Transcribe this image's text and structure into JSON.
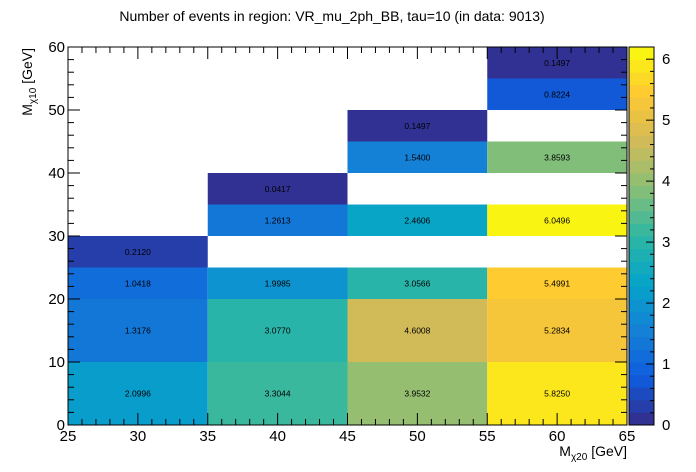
{
  "chart_data": {
    "type": "heatmap",
    "title": "Number of events in region: VR_mu_2ph_BB, tau=10 (in data: 9013)",
    "xlabel": {
      "main": "M",
      "sub": "χ20",
      "unit": " [GeV]"
    },
    "ylabel": {
      "main": "M",
      "sub": "χ10",
      "unit": " [GeV]"
    },
    "xlim": [
      25,
      65
    ],
    "ylim": [
      0,
      60
    ],
    "zlim": [
      0,
      6.2
    ],
    "x_ticks": [
      25,
      30,
      35,
      40,
      45,
      50,
      55,
      60,
      65
    ],
    "y_ticks": [
      0,
      10,
      20,
      30,
      40,
      50,
      60
    ],
    "z_ticks": [
      0,
      1,
      2,
      3,
      4,
      5,
      6
    ],
    "x_edges": [
      25,
      35,
      45,
      55,
      65
    ],
    "y_edges": [
      0,
      10,
      20,
      25,
      30,
      35,
      40,
      45,
      50,
      55,
      60
    ],
    "cells": [
      {
        "x": [
          25,
          35
        ],
        "y": [
          0,
          10
        ],
        "value": 2.0996,
        "label": "2.0996"
      },
      {
        "x": [
          25,
          35
        ],
        "y": [
          10,
          20
        ],
        "value": 1.3176,
        "label": "1.3176"
      },
      {
        "x": [
          25,
          35
        ],
        "y": [
          20,
          25
        ],
        "value": 1.0418,
        "label": "1.0418"
      },
      {
        "x": [
          25,
          35
        ],
        "y": [
          25,
          30
        ],
        "value": 0.212,
        "label": "0.2120"
      },
      {
        "x": [
          35,
          45
        ],
        "y": [
          0,
          10
        ],
        "value": 3.3044,
        "label": "3.3044"
      },
      {
        "x": [
          35,
          45
        ],
        "y": [
          10,
          20
        ],
        "value": 3.077,
        "label": "3.0770"
      },
      {
        "x": [
          35,
          45
        ],
        "y": [
          20,
          25
        ],
        "value": 1.9985,
        "label": "1.9985"
      },
      {
        "x": [
          35,
          45
        ],
        "y": [
          30,
          35
        ],
        "value": 1.2613,
        "label": "1.2613"
      },
      {
        "x": [
          35,
          45
        ],
        "y": [
          35,
          40
        ],
        "value": 0.0417,
        "label": "0.0417"
      },
      {
        "x": [
          45,
          55
        ],
        "y": [
          0,
          10
        ],
        "value": 3.9532,
        "label": "3.9532"
      },
      {
        "x": [
          45,
          55
        ],
        "y": [
          10,
          20
        ],
        "value": 4.6008,
        "label": "4.6008"
      },
      {
        "x": [
          45,
          55
        ],
        "y": [
          20,
          25
        ],
        "value": 3.0566,
        "label": "3.0566"
      },
      {
        "x": [
          45,
          55
        ],
        "y": [
          30,
          35
        ],
        "value": 2.4606,
        "label": "2.4606"
      },
      {
        "x": [
          45,
          55
        ],
        "y": [
          40,
          45
        ],
        "value": 1.54,
        "label": "1.5400"
      },
      {
        "x": [
          45,
          55
        ],
        "y": [
          45,
          50
        ],
        "value": 0.1497,
        "label": "0.1497"
      },
      {
        "x": [
          55,
          65
        ],
        "y": [
          0,
          10
        ],
        "value": 5.825,
        "label": "5.8250"
      },
      {
        "x": [
          55,
          65
        ],
        "y": [
          10,
          20
        ],
        "value": 5.2834,
        "label": "5.2834"
      },
      {
        "x": [
          55,
          65
        ],
        "y": [
          20,
          25
        ],
        "value": 5.4991,
        "label": "5.4991"
      },
      {
        "x": [
          55,
          65
        ],
        "y": [
          30,
          35
        ],
        "value": 6.0496,
        "label": "6.0496"
      },
      {
        "x": [
          55,
          65
        ],
        "y": [
          40,
          45
        ],
        "value": 3.8593,
        "label": "3.8593"
      },
      {
        "x": [
          55,
          65
        ],
        "y": [
          50,
          55
        ],
        "value": 0.8224,
        "label": "0.8224"
      },
      {
        "x": [
          55,
          65
        ],
        "y": [
          55,
          60
        ],
        "value": 0.1497,
        "label": "0.1497"
      }
    ],
    "colormap": [
      "#352a87",
      "#0f5cdd",
      "#1481d6",
      "#06a4ca",
      "#2eb7a4",
      "#87bf77",
      "#d1bb59",
      "#fec832",
      "#f9fb0e"
    ],
    "grid": false,
    "colorbar": "right"
  }
}
